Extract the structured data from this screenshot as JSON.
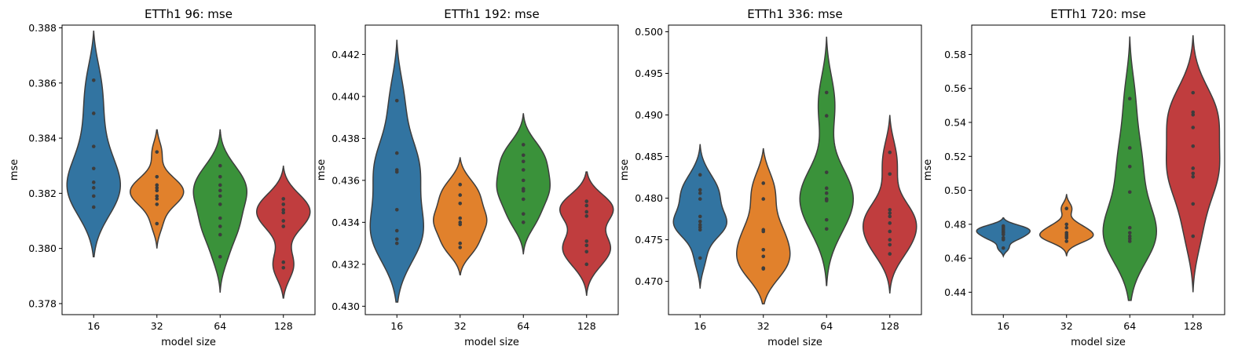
{
  "chart_data": [
    {
      "type": "violin",
      "title": "ETTh1 96: mse",
      "xlabel": "model size",
      "ylabel": "mse",
      "categories": [
        "16",
        "32",
        "64",
        "128"
      ],
      "ylim": [
        0.3776,
        0.3881
      ],
      "yticks": [
        0.378,
        0.38,
        0.382,
        0.384,
        0.386,
        0.388
      ],
      "ytick_labels": [
        "0.378",
        "0.380",
        "0.382",
        "0.384",
        "0.386",
        "0.388"
      ],
      "series": [
        {
          "category": "16",
          "color": "#3274a1",
          "range": [
            0.3797,
            0.3879
          ],
          "points": [
            0.3861,
            0.3849,
            0.3837,
            0.3829,
            0.3824,
            0.3822,
            0.3819,
            0.3815
          ]
        },
        {
          "category": "32",
          "color": "#e1812c",
          "range": [
            0.38,
            0.3843
          ],
          "points": [
            0.3835,
            0.3826,
            0.3823,
            0.3822,
            0.3821,
            0.3819,
            0.3818,
            0.3816,
            0.3809
          ]
        },
        {
          "category": "64",
          "color": "#3a923a",
          "range": [
            0.3784,
            0.3843
          ],
          "points": [
            0.383,
            0.3826,
            0.3823,
            0.3821,
            0.3819,
            0.3816,
            0.3811,
            0.3808,
            0.3805,
            0.3797
          ]
        },
        {
          "category": "128",
          "color": "#c03d3e",
          "range": [
            0.3782,
            0.383
          ],
          "points": [
            0.3818,
            0.3816,
            0.3814,
            0.3813,
            0.381,
            0.3808,
            0.3795,
            0.3793
          ]
        }
      ]
    },
    {
      "type": "violin",
      "title": "ETTh1 192: mse",
      "xlabel": "model size",
      "ylabel": "mse",
      "categories": [
        "16",
        "32",
        "64",
        "128"
      ],
      "ylim": [
        0.4296,
        0.4434
      ],
      "yticks": [
        0.43,
        0.432,
        0.434,
        0.436,
        0.438,
        0.44,
        0.442
      ],
      "ytick_labels": [
        "0.430",
        "0.432",
        "0.434",
        "0.436",
        "0.438",
        "0.440",
        "0.442"
      ],
      "series": [
        {
          "category": "16",
          "color": "#3274a1",
          "range": [
            0.4302,
            0.4427
          ],
          "points": [
            0.4398,
            0.4373,
            0.4365,
            0.4364,
            0.4346,
            0.4336,
            0.4332,
            0.433
          ]
        },
        {
          "category": "32",
          "color": "#e1812c",
          "range": [
            0.4315,
            0.4371
          ],
          "points": [
            0.4358,
            0.4353,
            0.4349,
            0.4342,
            0.434,
            0.4339,
            0.433,
            0.4328
          ]
        },
        {
          "category": "64",
          "color": "#3a923a",
          "range": [
            0.4325,
            0.4392
          ],
          "points": [
            0.4377,
            0.4372,
            0.4369,
            0.4365,
            0.436,
            0.4356,
            0.4355,
            0.4351,
            0.4344,
            0.434
          ]
        },
        {
          "category": "128",
          "color": "#c03d3e",
          "range": [
            0.4305,
            0.4364
          ],
          "points": [
            0.435,
            0.4348,
            0.4345,
            0.4343,
            0.4331,
            0.4329,
            0.4326,
            0.432
          ]
        }
      ]
    },
    {
      "type": "violin",
      "title": "ETTh1 336: mse",
      "xlabel": "model size",
      "ylabel": "mse",
      "categories": [
        "16",
        "32",
        "64",
        "128"
      ],
      "ylim": [
        0.466,
        0.5008
      ],
      "yticks": [
        0.47,
        0.475,
        0.48,
        0.485,
        0.49,
        0.495,
        0.5
      ],
      "ytick_labels": [
        "0.470",
        "0.475",
        "0.480",
        "0.485",
        "0.490",
        "0.495",
        "0.500"
      ],
      "series": [
        {
          "category": "16",
          "color": "#3274a1",
          "range": [
            0.4692,
            0.4865
          ],
          "points": [
            0.4828,
            0.481,
            0.4806,
            0.4799,
            0.4778,
            0.4772,
            0.4768,
            0.4765,
            0.4762,
            0.4728
          ]
        },
        {
          "category": "32",
          "color": "#e1812c",
          "range": [
            0.4673,
            0.486
          ],
          "points": [
            0.4818,
            0.4799,
            0.4762,
            0.476,
            0.4738,
            0.473,
            0.4716,
            0.4715
          ]
        },
        {
          "category": "64",
          "color": "#3a923a",
          "range": [
            0.4695,
            0.4994
          ],
          "points": [
            0.4927,
            0.4899,
            0.4831,
            0.4812,
            0.4806,
            0.4799,
            0.4797,
            0.4774,
            0.4763
          ]
        },
        {
          "category": "128",
          "color": "#c03d3e",
          "range": [
            0.4686,
            0.49
          ],
          "points": [
            0.4855,
            0.4829,
            0.4786,
            0.4782,
            0.4778,
            0.477,
            0.476,
            0.475,
            0.4744,
            0.4733
          ]
        }
      ]
    },
    {
      "type": "violin",
      "title": "ETTh1 720: mse",
      "xlabel": "model size",
      "ylabel": "mse",
      "categories": [
        "16",
        "32",
        "64",
        "128"
      ],
      "ylim": [
        0.4268,
        0.5973
      ],
      "yticks": [
        0.44,
        0.46,
        0.48,
        0.5,
        0.52,
        0.54,
        0.56,
        0.58
      ],
      "ytick_labels": [
        "0.44",
        "0.46",
        "0.48",
        "0.50",
        "0.52",
        "0.54",
        "0.56",
        "0.58"
      ],
      "series": [
        {
          "category": "16",
          "color": "#3274a1",
          "range": [
            0.4612,
            0.4838
          ],
          "points": [
            0.479,
            0.478,
            0.477,
            0.476,
            0.475,
            0.474,
            0.472,
            0.471,
            0.466
          ]
        },
        {
          "category": "32",
          "color": "#e1812c",
          "range": [
            0.4612,
            0.4978
          ],
          "points": [
            0.4893,
            0.48,
            0.478,
            0.475,
            0.474,
            0.473,
            0.472,
            0.47
          ]
        },
        {
          "category": "64",
          "color": "#3a923a",
          "range": [
            0.4352,
            0.5906
          ],
          "points": [
            0.554,
            0.525,
            0.514,
            0.499,
            0.478,
            0.475,
            0.473,
            0.4715,
            0.47
          ]
        },
        {
          "category": "128",
          "color": "#c03d3e",
          "range": [
            0.44,
            0.591
          ],
          "points": [
            0.5575,
            0.546,
            0.5445,
            0.537,
            0.526,
            0.513,
            0.51,
            0.508,
            0.492,
            0.473
          ]
        }
      ]
    }
  ]
}
